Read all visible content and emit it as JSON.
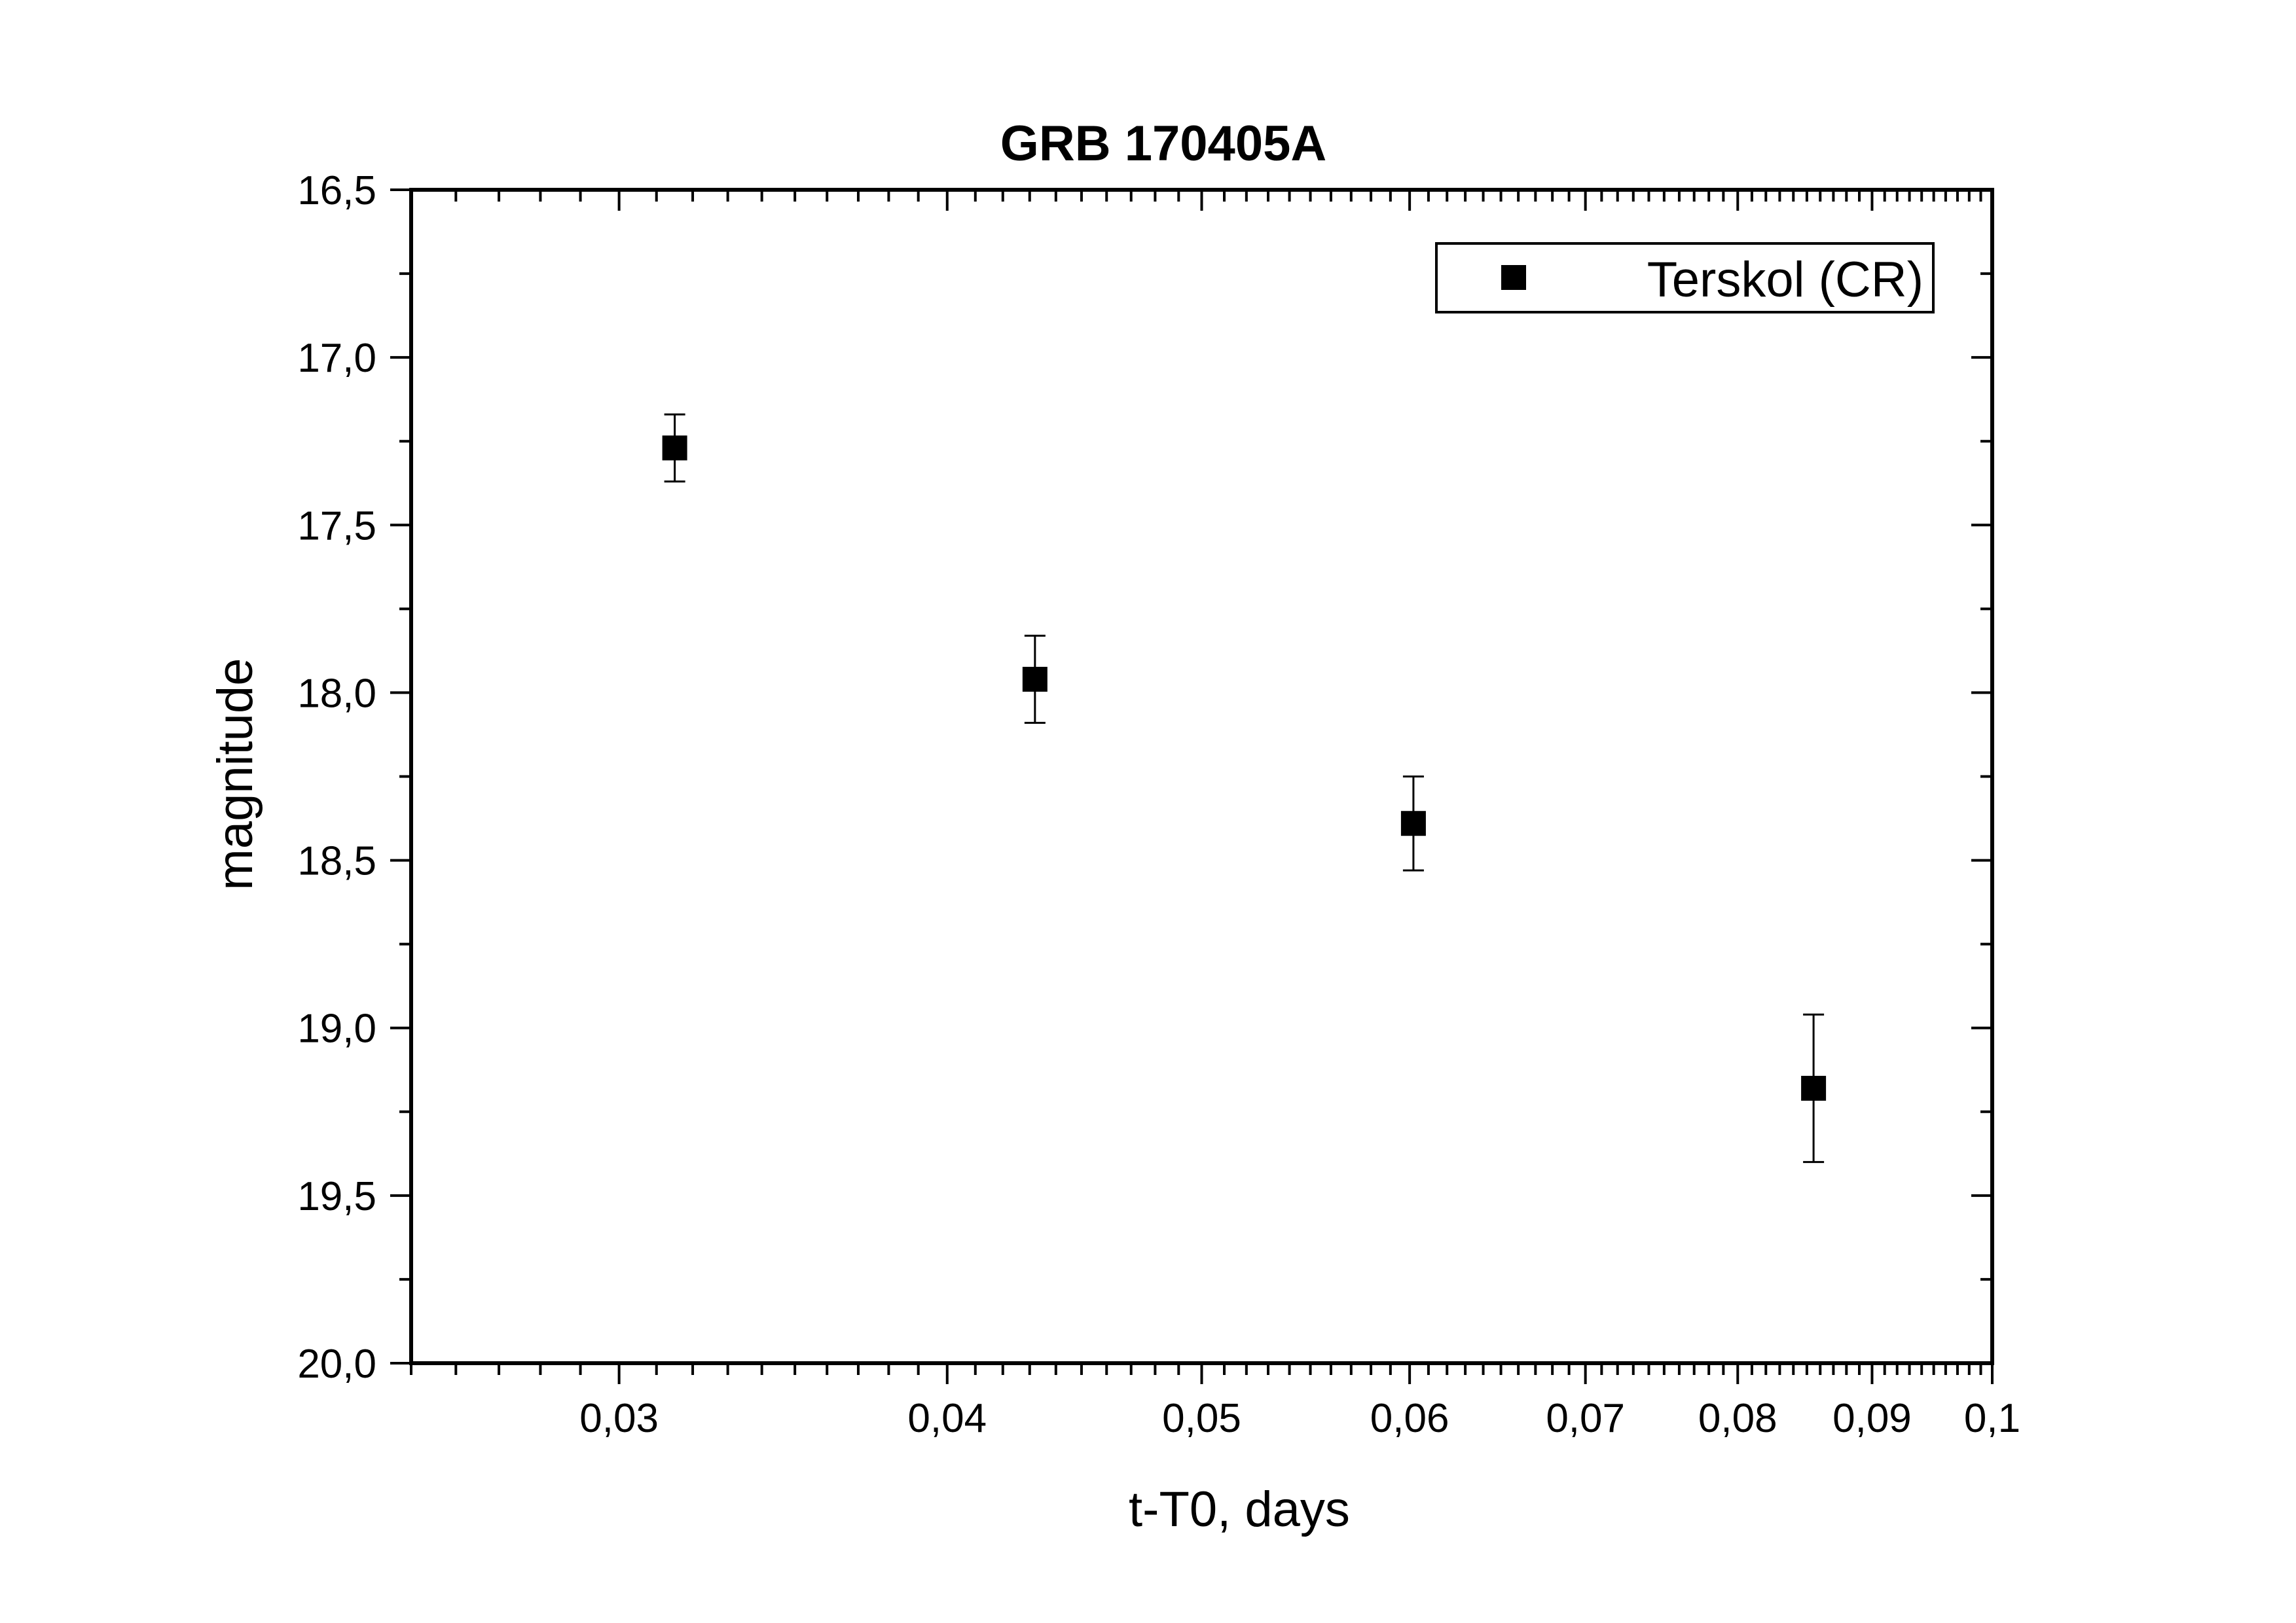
{
  "chart_data": {
    "type": "scatter",
    "title": "GRB 170405A",
    "xlabel": "t-T0, days",
    "ylabel": "magnitude",
    "x_scale": "log",
    "xlim": [
      0.025,
      0.1
    ],
    "ylim": [
      20.0,
      16.5
    ],
    "y_inverted": true,
    "grid": false,
    "legend_position": "top-right",
    "x_tick_labels": [
      {
        "value": 0.03,
        "label": "0,03"
      },
      {
        "value": 0.04,
        "label": "0,04"
      },
      {
        "value": 0.05,
        "label": "0,05"
      },
      {
        "value": 0.06,
        "label": "0,06"
      },
      {
        "value": 0.07,
        "label": "0,07"
      },
      {
        "value": 0.08,
        "label": "0,08"
      },
      {
        "value": 0.09,
        "label": "0,09"
      },
      {
        "value": 0.1,
        "label": "0,1"
      }
    ],
    "y_tick_labels": [
      {
        "value": 16.5,
        "label": "16,5"
      },
      {
        "value": 17.0,
        "label": "17,0"
      },
      {
        "value": 17.5,
        "label": "17,5"
      },
      {
        "value": 18.0,
        "label": "18,0"
      },
      {
        "value": 18.5,
        "label": "18,5"
      },
      {
        "value": 19.0,
        "label": "19,0"
      },
      {
        "value": 19.5,
        "label": "19,5"
      },
      {
        "value": 20.0,
        "label": "20,0"
      }
    ],
    "series": [
      {
        "name": "Terskol (CR)",
        "marker": "filled-square",
        "color": "#000000",
        "points": [
          {
            "x": 0.0315,
            "y": 17.27,
            "err": 0.1
          },
          {
            "x": 0.0432,
            "y": 17.96,
            "err": 0.13
          },
          {
            "x": 0.0602,
            "y": 18.39,
            "err": 0.14
          },
          {
            "x": 0.0855,
            "y": 19.18,
            "err": 0.22
          }
        ]
      }
    ]
  }
}
